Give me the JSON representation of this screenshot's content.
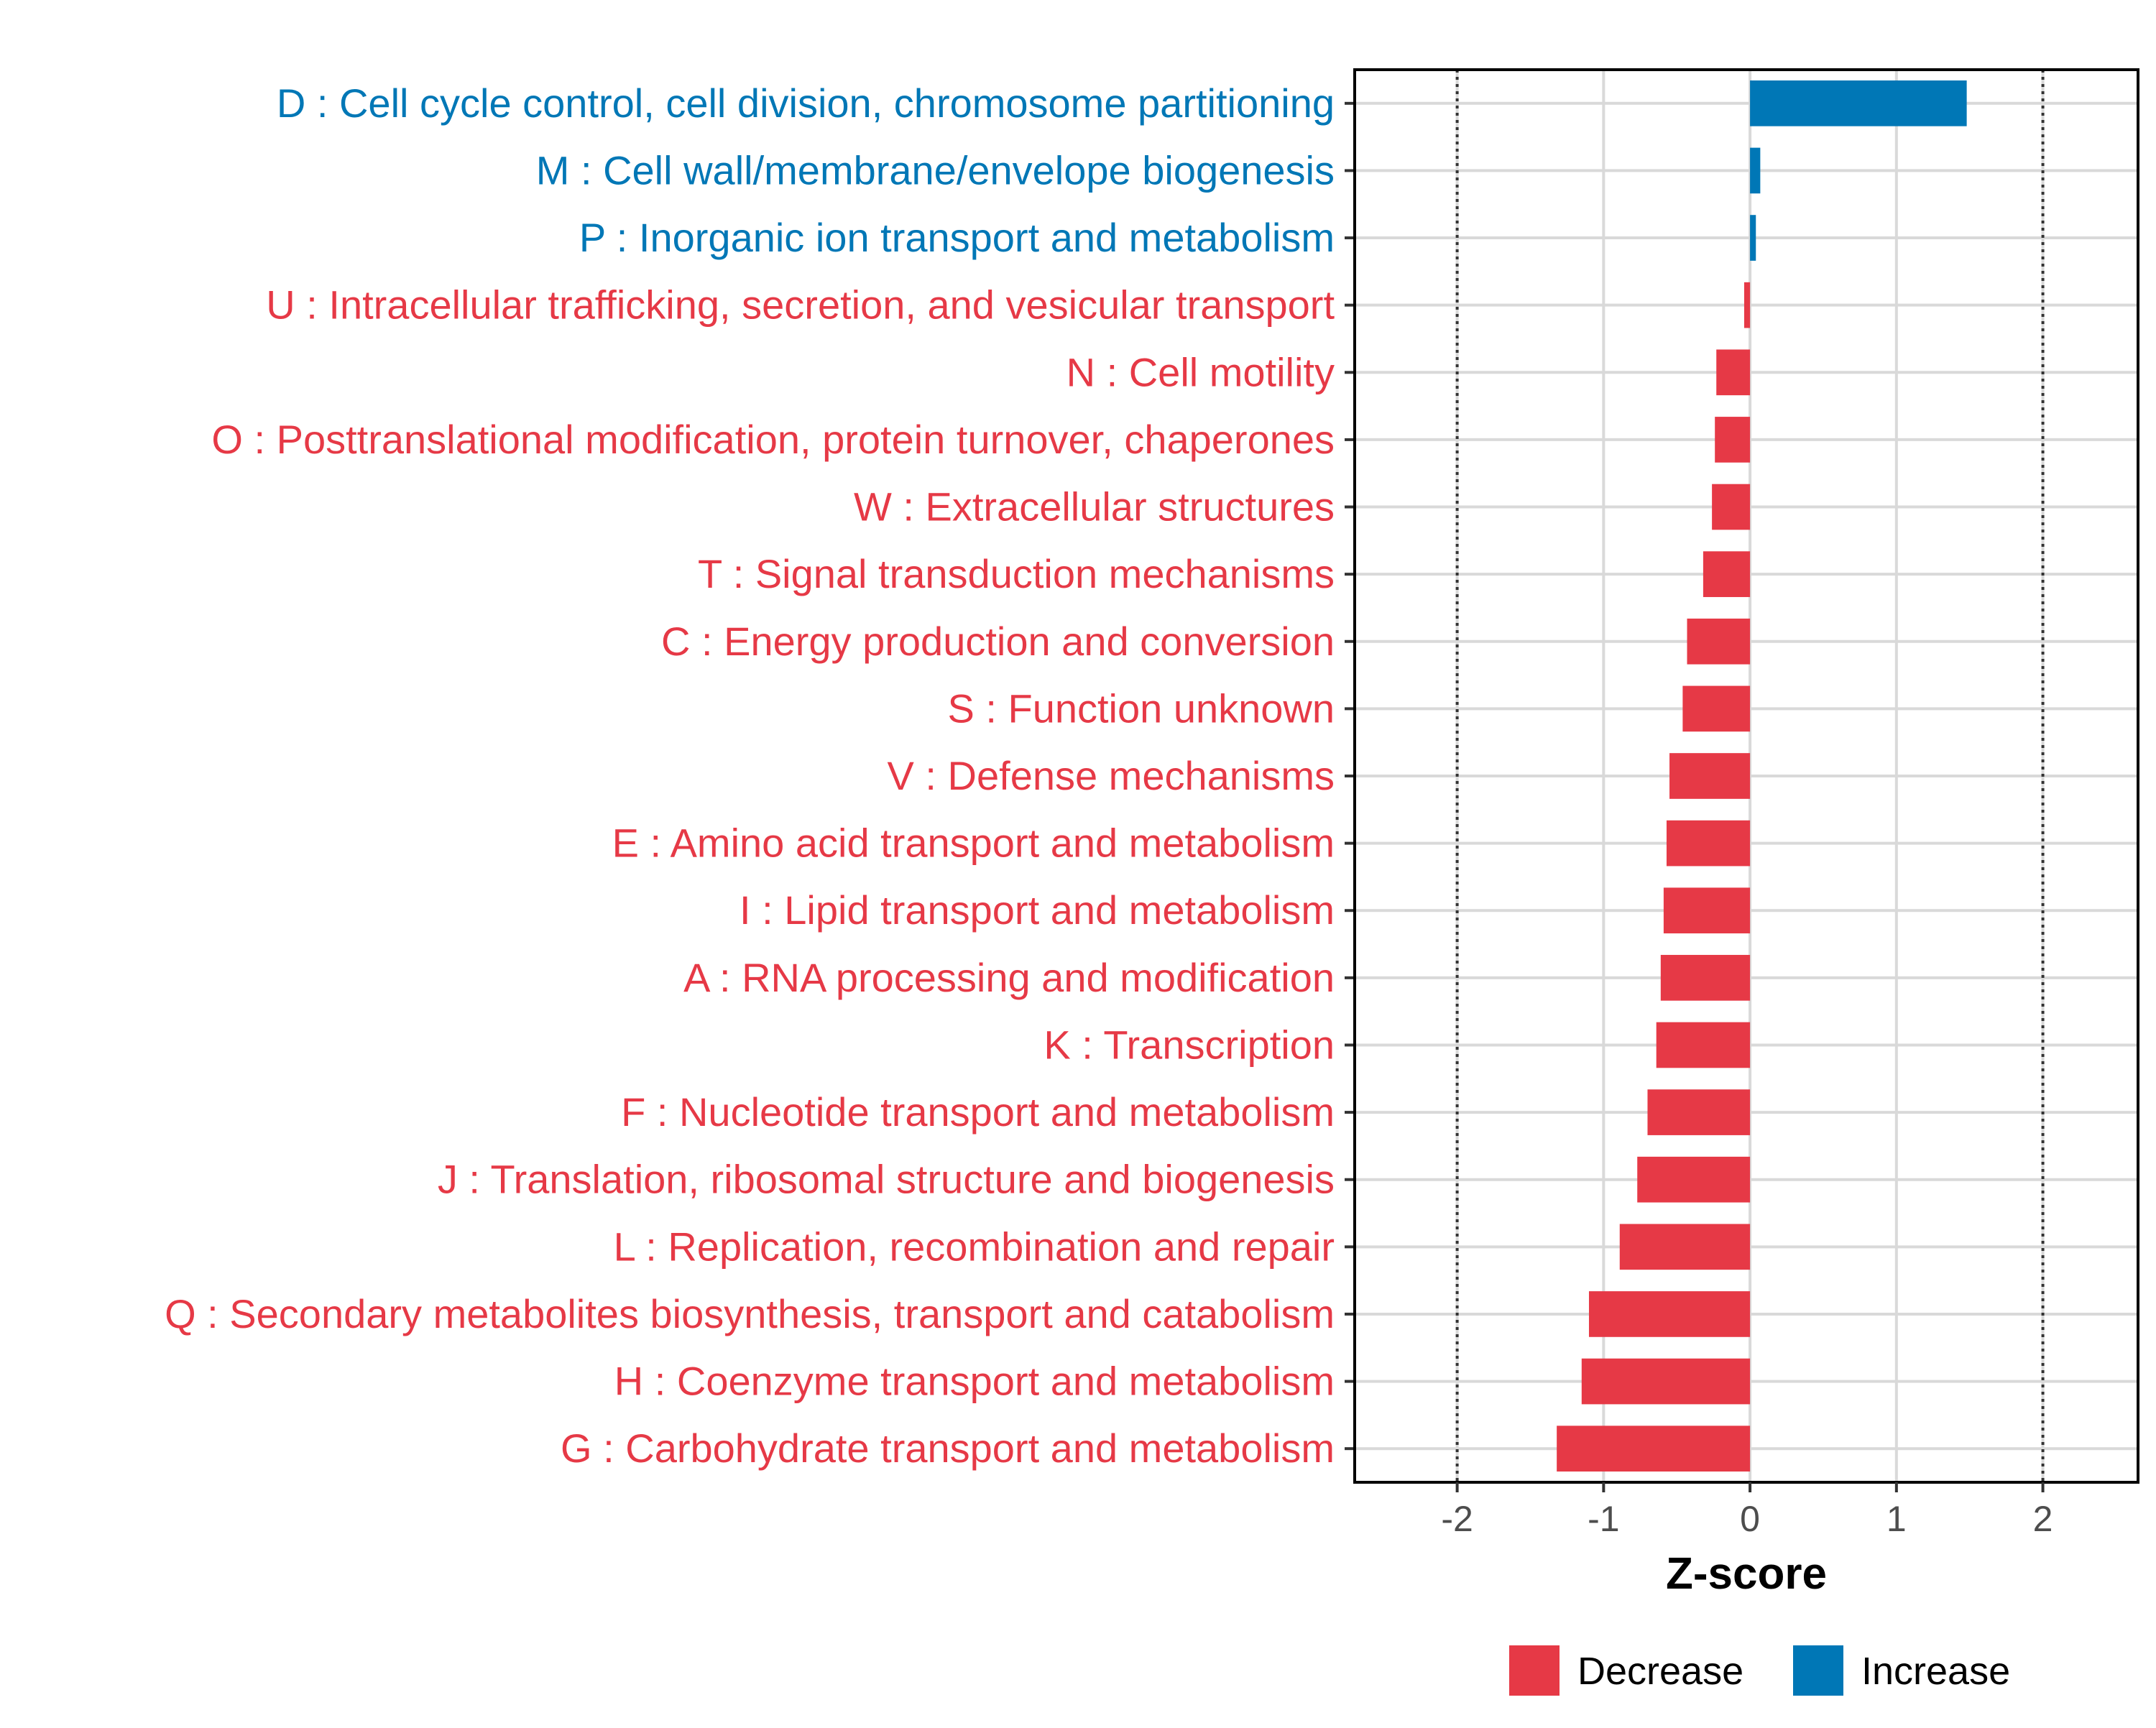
{
  "chart_data": {
    "type": "bar",
    "orientation": "horizontal",
    "xlabel": "Z-score",
    "xlim": [
      -2.7,
      2.65
    ],
    "xticks": [
      -2,
      -1,
      0,
      1,
      2
    ],
    "xtick_labels": [
      "-2",
      "-1",
      "0",
      "1",
      "2"
    ],
    "reference_lines": [
      -2,
      2
    ],
    "grid": true,
    "legend_position": "bottom",
    "colors": {
      "Decrease": "#e63946",
      "Increase": "#0077b6"
    },
    "legend": [
      {
        "label": "Decrease",
        "color": "#e63946"
      },
      {
        "label": "Increase",
        "color": "#0077b6"
      }
    ],
    "categories": [
      "D : Cell cycle control, cell division, chromosome partitioning",
      "M : Cell wall/membrane/envelope biogenesis",
      "P : Inorganic ion transport and metabolism",
      "U : Intracellular trafficking, secretion, and vesicular transport",
      "N : Cell motility",
      "O : Posttranslational modification, protein turnover, chaperones",
      "W : Extracellular structures",
      "T : Signal transduction mechanisms",
      "C : Energy production and conversion",
      "S : Function unknown",
      "V : Defense mechanisms",
      "E : Amino acid transport and metabolism",
      "I : Lipid transport and metabolism",
      "A : RNA processing and modification",
      "K : Transcription",
      "F : Nucleotide transport and metabolism",
      "J : Translation, ribosomal structure and biogenesis",
      "L : Replication, recombination and repair",
      "Q : Secondary metabolites biosynthesis, transport and catabolism",
      "H : Coenzyme transport and metabolism",
      "G : Carbohydrate transport and metabolism"
    ],
    "values": [
      1.48,
      0.07,
      0.04,
      -0.04,
      -0.23,
      -0.24,
      -0.26,
      -0.32,
      -0.43,
      -0.46,
      -0.55,
      -0.57,
      -0.59,
      -0.61,
      -0.64,
      -0.7,
      -0.77,
      -0.89,
      -1.1,
      -1.15,
      -1.32
    ],
    "direction": [
      "Increase",
      "Increase",
      "Increase",
      "Decrease",
      "Decrease",
      "Decrease",
      "Decrease",
      "Decrease",
      "Decrease",
      "Decrease",
      "Decrease",
      "Decrease",
      "Decrease",
      "Decrease",
      "Decrease",
      "Decrease",
      "Decrease",
      "Decrease",
      "Decrease",
      "Decrease",
      "Decrease"
    ]
  }
}
